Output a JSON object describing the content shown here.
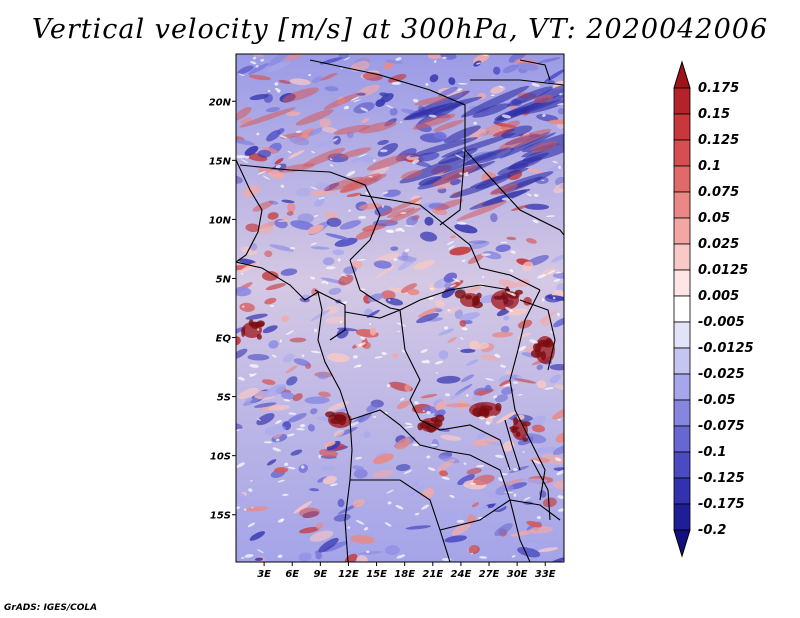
{
  "title": "Vertical velocity [m/s] at 300hPa, VT: 2020042006",
  "footer": "GrADS: IGES/COLA",
  "map": {
    "lat_labels": [
      "20N",
      "15N",
      "10N",
      "5N",
      "EQ",
      "5S",
      "10S",
      "15S"
    ],
    "lon_labels": [
      "3E",
      "6E",
      "9E",
      "12E",
      "15E",
      "18E",
      "21E",
      "24E",
      "27E",
      "30E",
      "33E"
    ],
    "lon_range": [
      0,
      35
    ],
    "lat_range": [
      -19,
      24
    ]
  },
  "colorbar": {
    "levels": [
      "0.175",
      "0.15",
      "0.125",
      "0.1",
      "0.075",
      "0.05",
      "0.025",
      "0.0125",
      "0.005",
      "-0.005",
      "-0.0125",
      "-0.025",
      "-0.05",
      "-0.075",
      "-0.1",
      "-0.125",
      "-0.175",
      "-0.2"
    ],
    "colors": [
      "#a01419",
      "#b42328",
      "#c8373c",
      "#d64e50",
      "#e16a68",
      "#ea8886",
      "#f2a7a5",
      "#f8c9c7",
      "#fde6e5",
      "#ffffff",
      "#e2e2f8",
      "#c5c5f2",
      "#a6a6ea",
      "#8686df",
      "#6767d2",
      "#4a4ac2",
      "#3232ae",
      "#1e1e96",
      "#10107f"
    ]
  }
}
